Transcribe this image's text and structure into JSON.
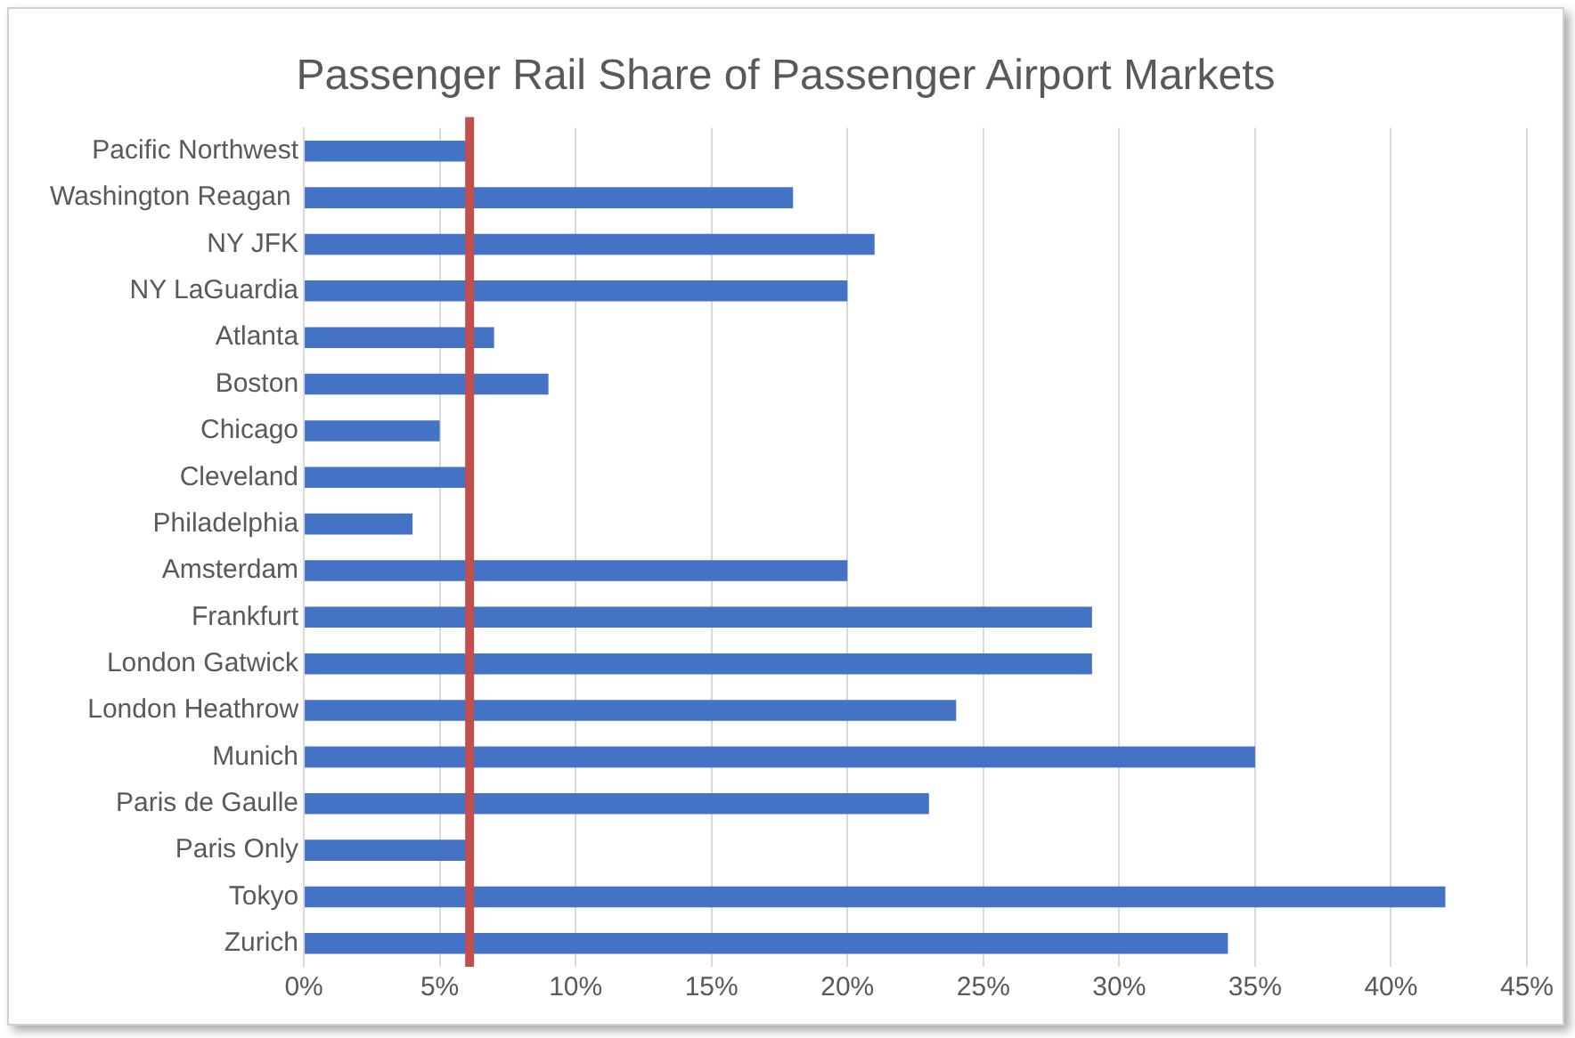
{
  "chart_data": {
    "type": "bar",
    "orientation": "horizontal",
    "title": "Passenger Rail Share of Passenger Airport Markets",
    "categories": [
      "Pacific Northwest",
      "Washington Reagan ",
      "NY JFK",
      "NY LaGuardia",
      "Atlanta",
      "Boston",
      "Chicago",
      "Cleveland",
      "Philadelphia",
      "Amsterdam",
      "Frankfurt",
      "London Gatwick",
      "London Heathrow",
      "Munich",
      "Paris de Gaulle",
      "Paris Only",
      "Tokyo",
      "Zurich"
    ],
    "values": [
      6,
      18,
      21,
      20,
      7,
      9,
      5,
      6,
      4,
      20,
      29,
      29,
      24,
      35,
      23,
      6,
      42,
      34
    ],
    "color": "#4472c4",
    "xlim": [
      0,
      45
    ],
    "xticks": [
      {
        "value": 0,
        "label": "0%"
      },
      {
        "value": 5,
        "label": "5%"
      },
      {
        "value": 10,
        "label": "10%"
      },
      {
        "value": 15,
        "label": "15%"
      },
      {
        "value": 20,
        "label": "20%"
      },
      {
        "value": 25,
        "label": "25%"
      },
      {
        "value": 30,
        "label": "30%"
      },
      {
        "value": 35,
        "label": "35%"
      },
      {
        "value": 40,
        "label": "40%"
      },
      {
        "value": 45,
        "label": "45%"
      }
    ],
    "ref_lines": [
      {
        "axis": "x",
        "value": 6.1,
        "color": "#c0504d"
      }
    ],
    "grid": "x",
    "legend": false
  }
}
